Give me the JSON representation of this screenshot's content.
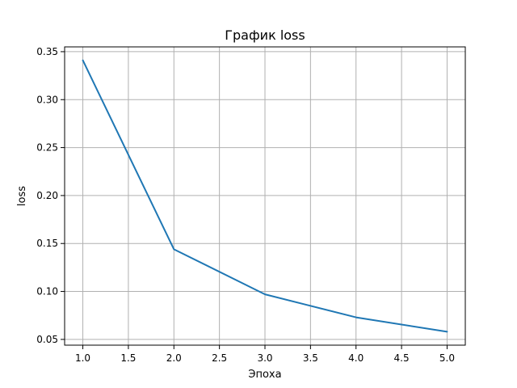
{
  "chart_data": {
    "type": "line",
    "title": "График loss",
    "xlabel": "Эпоха",
    "ylabel": "loss",
    "x": [
      1.0,
      2.0,
      3.0,
      4.0,
      5.0
    ],
    "series": [
      {
        "name": "loss",
        "values": [
          0.341,
          0.144,
          0.097,
          0.073,
          0.058
        ],
        "color": "#1f77b4"
      }
    ],
    "xlim": [
      0.8,
      5.2
    ],
    "ylim": [
      0.044,
      0.355
    ],
    "xticks": [
      1.0,
      1.5,
      2.0,
      2.5,
      3.0,
      3.5,
      4.0,
      4.5,
      5.0
    ],
    "xtick_labels": [
      "1.0",
      "1.5",
      "2.0",
      "2.5",
      "3.0",
      "3.5",
      "4.0",
      "4.5",
      "5.0"
    ],
    "yticks": [
      0.05,
      0.1,
      0.15,
      0.2,
      0.25,
      0.3,
      0.35
    ],
    "ytick_labels": [
      "0.05",
      "0.10",
      "0.15",
      "0.20",
      "0.25",
      "0.30",
      "0.35"
    ],
    "grid": true
  }
}
